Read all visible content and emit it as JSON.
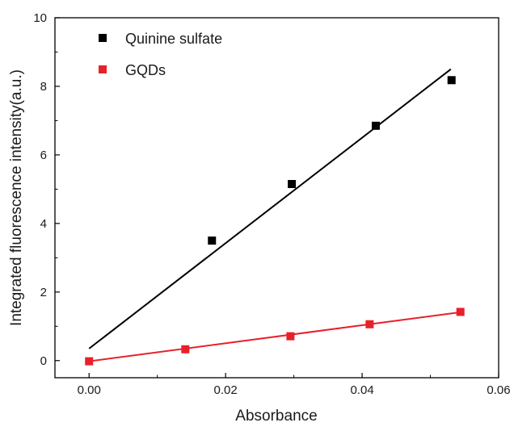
{
  "chart_data": {
    "type": "scatter",
    "xlabel": "Absorbance",
    "ylabel": "Integrated fluorescence intensity(a.u.)",
    "xlim": [
      -0.005,
      0.06
    ],
    "ylim": [
      -0.5,
      10
    ],
    "xticks": [
      0.0,
      0.02,
      0.04,
      0.06
    ],
    "xtick_labels": [
      "0.00",
      "0.02",
      "0.04",
      "0.06"
    ],
    "yticks": [
      0,
      2,
      4,
      6,
      8,
      10
    ],
    "ytick_labels": [
      "0",
      "2",
      "4",
      "6",
      "8",
      "10"
    ],
    "grid": false,
    "legend_position": "top-left",
    "series": [
      {
        "name": "Quinine sulfate",
        "color": "#000000",
        "marker": "square",
        "x": [
          0.018,
          0.0297,
          0.042,
          0.0531
        ],
        "y": [
          3.5,
          5.15,
          6.85,
          8.18
        ],
        "fit_line": {
          "x": [
            0.0,
            0.053
          ],
          "y": [
            0.35,
            8.5
          ]
        }
      },
      {
        "name": "GQDs",
        "color": "#e8202a",
        "marker": "square",
        "x": [
          0.0,
          0.0141,
          0.0295,
          0.0411,
          0.0544
        ],
        "y": [
          -0.02,
          0.33,
          0.71,
          1.06,
          1.42
        ],
        "fit_line": {
          "x": [
            0.0,
            0.0544
          ],
          "y": [
            -0.02,
            1.41
          ]
        }
      }
    ]
  }
}
